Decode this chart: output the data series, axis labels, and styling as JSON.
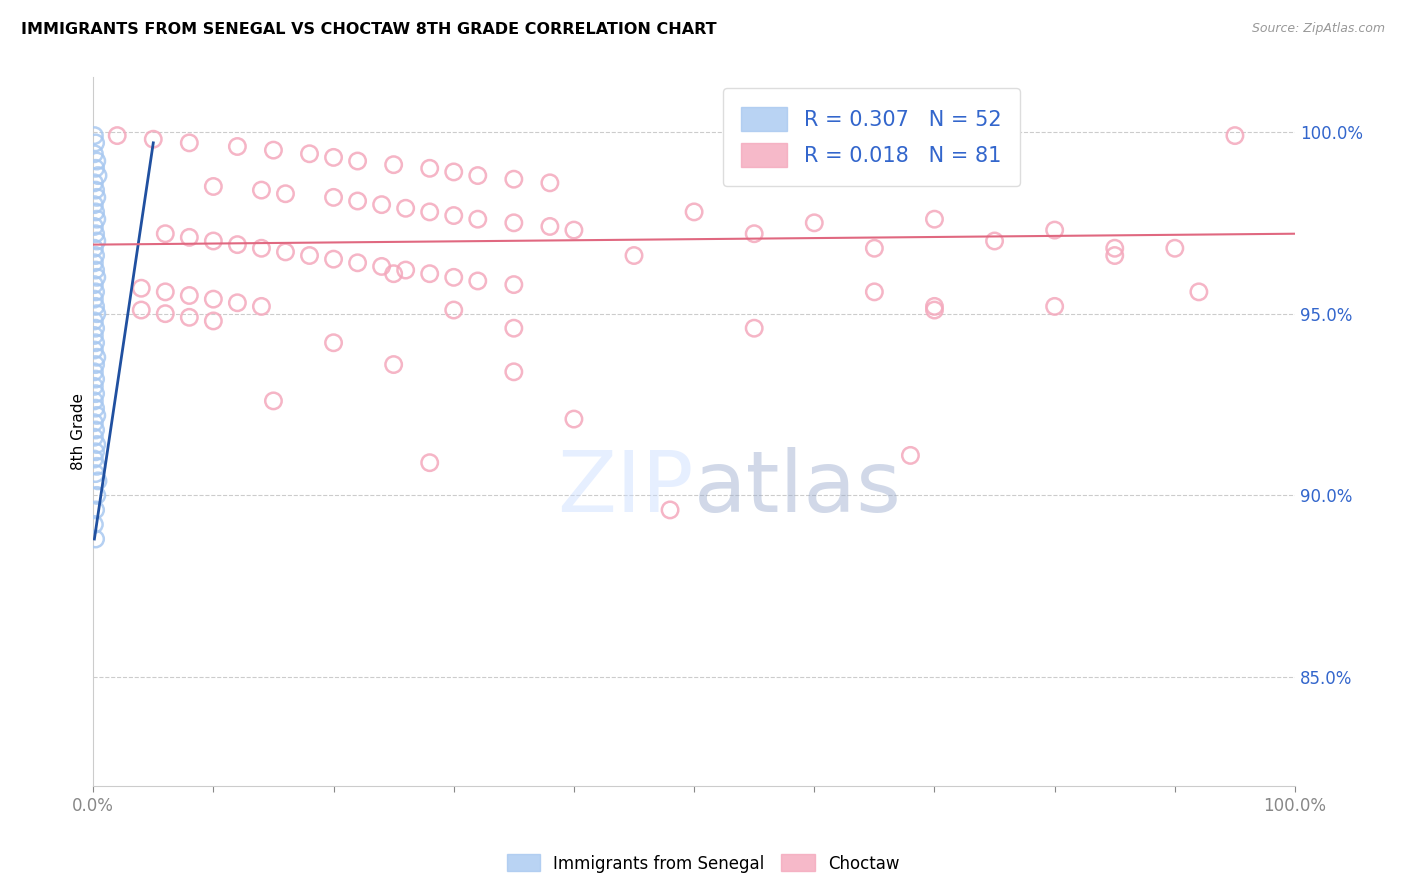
{
  "title": "IMMIGRANTS FROM SENEGAL VS CHOCTAW 8TH GRADE CORRELATION CHART",
  "source": "Source: ZipAtlas.com",
  "ylabel": "8th Grade",
  "xlim": [
    0.0,
    1.0
  ],
  "ylim": [
    0.82,
    1.015
  ],
  "yticks": [
    0.85,
    0.9,
    0.95,
    1.0
  ],
  "ytick_labels": [
    "85.0%",
    "90.0%",
    "95.0%",
    "100.0%"
  ],
  "legend_blue_r": "R = 0.307",
  "legend_blue_n": "N = 52",
  "legend_pink_r": "R = 0.018",
  "legend_pink_n": "N = 81",
  "blue_color": "#A8C8F0",
  "pink_color": "#F4A8BC",
  "blue_edge_color": "#88A8D8",
  "pink_edge_color": "#E888A0",
  "blue_line_color": "#2050A0",
  "pink_line_color": "#E06880",
  "blue_scatter": [
    [
      0.001,
      0.999
    ],
    [
      0.002,
      0.997
    ],
    [
      0.001,
      0.994
    ],
    [
      0.003,
      0.992
    ],
    [
      0.002,
      0.99
    ],
    [
      0.004,
      0.988
    ],
    [
      0.001,
      0.986
    ],
    [
      0.002,
      0.984
    ],
    [
      0.003,
      0.982
    ],
    [
      0.001,
      0.98
    ],
    [
      0.002,
      0.978
    ],
    [
      0.003,
      0.976
    ],
    [
      0.001,
      0.974
    ],
    [
      0.002,
      0.972
    ],
    [
      0.003,
      0.97
    ],
    [
      0.001,
      0.968
    ],
    [
      0.002,
      0.966
    ],
    [
      0.001,
      0.964
    ],
    [
      0.002,
      0.962
    ],
    [
      0.003,
      0.96
    ],
    [
      0.001,
      0.958
    ],
    [
      0.002,
      0.956
    ],
    [
      0.001,
      0.954
    ],
    [
      0.002,
      0.952
    ],
    [
      0.003,
      0.95
    ],
    [
      0.001,
      0.948
    ],
    [
      0.002,
      0.946
    ],
    [
      0.001,
      0.944
    ],
    [
      0.002,
      0.942
    ],
    [
      0.001,
      0.94
    ],
    [
      0.003,
      0.938
    ],
    [
      0.002,
      0.936
    ],
    [
      0.001,
      0.934
    ],
    [
      0.002,
      0.932
    ],
    [
      0.001,
      0.93
    ],
    [
      0.002,
      0.928
    ],
    [
      0.001,
      0.926
    ],
    [
      0.002,
      0.924
    ],
    [
      0.003,
      0.922
    ],
    [
      0.001,
      0.92
    ],
    [
      0.002,
      0.918
    ],
    [
      0.001,
      0.916
    ],
    [
      0.003,
      0.914
    ],
    [
      0.002,
      0.912
    ],
    [
      0.001,
      0.91
    ],
    [
      0.003,
      0.908
    ],
    [
      0.002,
      0.906
    ],
    [
      0.004,
      0.904
    ],
    [
      0.003,
      0.9
    ],
    [
      0.002,
      0.896
    ],
    [
      0.001,
      0.892
    ],
    [
      0.002,
      0.888
    ]
  ],
  "pink_scatter": [
    [
      0.02,
      0.999
    ],
    [
      0.05,
      0.998
    ],
    [
      0.08,
      0.997
    ],
    [
      0.12,
      0.996
    ],
    [
      0.15,
      0.995
    ],
    [
      0.18,
      0.994
    ],
    [
      0.2,
      0.993
    ],
    [
      0.22,
      0.992
    ],
    [
      0.25,
      0.991
    ],
    [
      0.28,
      0.99
    ],
    [
      0.3,
      0.989
    ],
    [
      0.32,
      0.988
    ],
    [
      0.35,
      0.987
    ],
    [
      0.38,
      0.986
    ],
    [
      0.1,
      0.985
    ],
    [
      0.14,
      0.984
    ],
    [
      0.16,
      0.983
    ],
    [
      0.2,
      0.982
    ],
    [
      0.22,
      0.981
    ],
    [
      0.24,
      0.98
    ],
    [
      0.26,
      0.979
    ],
    [
      0.28,
      0.978
    ],
    [
      0.3,
      0.977
    ],
    [
      0.32,
      0.976
    ],
    [
      0.35,
      0.975
    ],
    [
      0.38,
      0.974
    ],
    [
      0.4,
      0.973
    ],
    [
      0.06,
      0.972
    ],
    [
      0.08,
      0.971
    ],
    [
      0.1,
      0.97
    ],
    [
      0.12,
      0.969
    ],
    [
      0.14,
      0.968
    ],
    [
      0.16,
      0.967
    ],
    [
      0.18,
      0.966
    ],
    [
      0.2,
      0.965
    ],
    [
      0.22,
      0.964
    ],
    [
      0.24,
      0.963
    ],
    [
      0.26,
      0.962
    ],
    [
      0.28,
      0.961
    ],
    [
      0.3,
      0.96
    ],
    [
      0.32,
      0.959
    ],
    [
      0.35,
      0.958
    ],
    [
      0.04,
      0.957
    ],
    [
      0.06,
      0.956
    ],
    [
      0.08,
      0.955
    ],
    [
      0.1,
      0.954
    ],
    [
      0.12,
      0.953
    ],
    [
      0.14,
      0.952
    ],
    [
      0.04,
      0.951
    ],
    [
      0.06,
      0.95
    ],
    [
      0.08,
      0.949
    ],
    [
      0.1,
      0.948
    ],
    [
      0.5,
      0.978
    ],
    [
      0.55,
      0.972
    ],
    [
      0.6,
      0.975
    ],
    [
      0.65,
      0.968
    ],
    [
      0.7,
      0.976
    ],
    [
      0.75,
      0.97
    ],
    [
      0.8,
      0.973
    ],
    [
      0.85,
      0.966
    ],
    [
      0.9,
      0.968
    ],
    [
      0.92,
      0.956
    ],
    [
      0.95,
      0.999
    ],
    [
      0.85,
      0.968
    ],
    [
      0.7,
      0.952
    ],
    [
      0.2,
      0.942
    ],
    [
      0.25,
      0.936
    ],
    [
      0.55,
      0.946
    ],
    [
      0.3,
      0.951
    ],
    [
      0.65,
      0.956
    ],
    [
      0.8,
      0.952
    ],
    [
      0.35,
      0.934
    ],
    [
      0.4,
      0.921
    ],
    [
      0.15,
      0.926
    ],
    [
      0.28,
      0.909
    ],
    [
      0.68,
      0.911
    ],
    [
      0.48,
      0.896
    ],
    [
      0.35,
      0.946
    ],
    [
      0.25,
      0.961
    ],
    [
      0.45,
      0.966
    ],
    [
      0.7,
      0.951
    ]
  ],
  "blue_trend_x": [
    0.001,
    0.05
  ],
  "blue_trend_y": [
    0.888,
    0.997
  ],
  "pink_trend_x": [
    0.0,
    1.0
  ],
  "pink_trend_y": [
    0.969,
    0.972
  ]
}
